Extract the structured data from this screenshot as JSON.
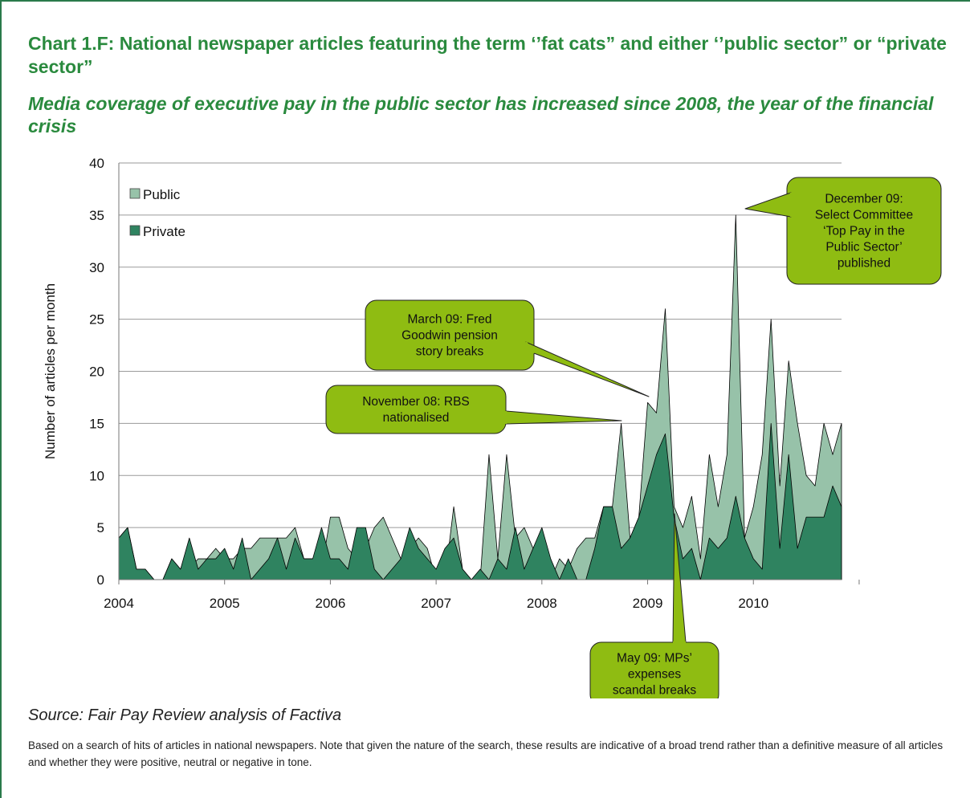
{
  "title": "Chart 1.F: National newspaper articles featuring the term ‘’fat cats” and either ‘’public sector” or “private sector”",
  "subtitle": "Media coverage of executive pay in the public sector has increased since 2008, the year of the financial crisis",
  "source": "Source: Fair Pay Review analysis of Factiva",
  "note": "Based on a search of hits of articles in national newspapers. Note that given the nature of the search, these results are indicative of a broad trend rather than a definitive measure of all articles and whether they were positive, neutral or negative in tone.",
  "colors": {
    "public": "#97c2a9",
    "private": "#2f8360",
    "callout": "#8fbc12",
    "heading": "#2a8a3e"
  },
  "chart_data": {
    "type": "area",
    "ylabel": "Number of articles per month",
    "ylim": [
      0,
      40
    ],
    "yticks": [
      "0",
      "5",
      "10",
      "15",
      "20",
      "25",
      "30",
      "35",
      "40"
    ],
    "xtick_labels": [
      "2004",
      "2005",
      "2006",
      "2007",
      "2008",
      "2009",
      "2010"
    ],
    "x_start": "2004-01",
    "legend_position": "top-left",
    "series": [
      {
        "name": "Public",
        "values": [
          4,
          5,
          1,
          1,
          0,
          0,
          2,
          1,
          1,
          2,
          2,
          3,
          2,
          2,
          3,
          3,
          4,
          4,
          4,
          4,
          5,
          2,
          2,
          1,
          6,
          6,
          3,
          2,
          3,
          5,
          6,
          4,
          2,
          3,
          4,
          3,
          0,
          0,
          7,
          1,
          0,
          0,
          12,
          2,
          12,
          4,
          5,
          3,
          3,
          0,
          2,
          1,
          3,
          4,
          4,
          7,
          7,
          15,
          4,
          6,
          17,
          16,
          26,
          7,
          5,
          8,
          2,
          12,
          7,
          12,
          35,
          4,
          7,
          12,
          25,
          9,
          21,
          15,
          10,
          9,
          15,
          12,
          15
        ]
      },
      {
        "name": "Private",
        "values": [
          4,
          5,
          1,
          1,
          0,
          0,
          2,
          1,
          4,
          1,
          2,
          2,
          3,
          1,
          4,
          0,
          1,
          2,
          4,
          1,
          4,
          2,
          2,
          5,
          2,
          2,
          1,
          5,
          5,
          1,
          0,
          1,
          2,
          5,
          3,
          2,
          1,
          3,
          4,
          1,
          0,
          1,
          0,
          2,
          1,
          5,
          1,
          3,
          5,
          2,
          0,
          2,
          0,
          0,
          3,
          7,
          7,
          3,
          4,
          6,
          9,
          12,
          14,
          6,
          2,
          3,
          0,
          4,
          3,
          4,
          8,
          4,
          2,
          1,
          15,
          3,
          12,
          3,
          6,
          6,
          6,
          9,
          7
        ]
      }
    ],
    "annotations": [
      {
        "text": [
          "November 08: RBS",
          "nationalised"
        ]
      },
      {
        "text": [
          "March 09: Fred",
          "Goodwin pension",
          "story breaks"
        ]
      },
      {
        "text": [
          "December 09:",
          "Select Committee",
          "‘Top Pay in the",
          "Public Sector’",
          "published"
        ]
      },
      {
        "text": [
          "May 09: MPs’",
          "expenses",
          "scandal breaks"
        ]
      }
    ]
  }
}
